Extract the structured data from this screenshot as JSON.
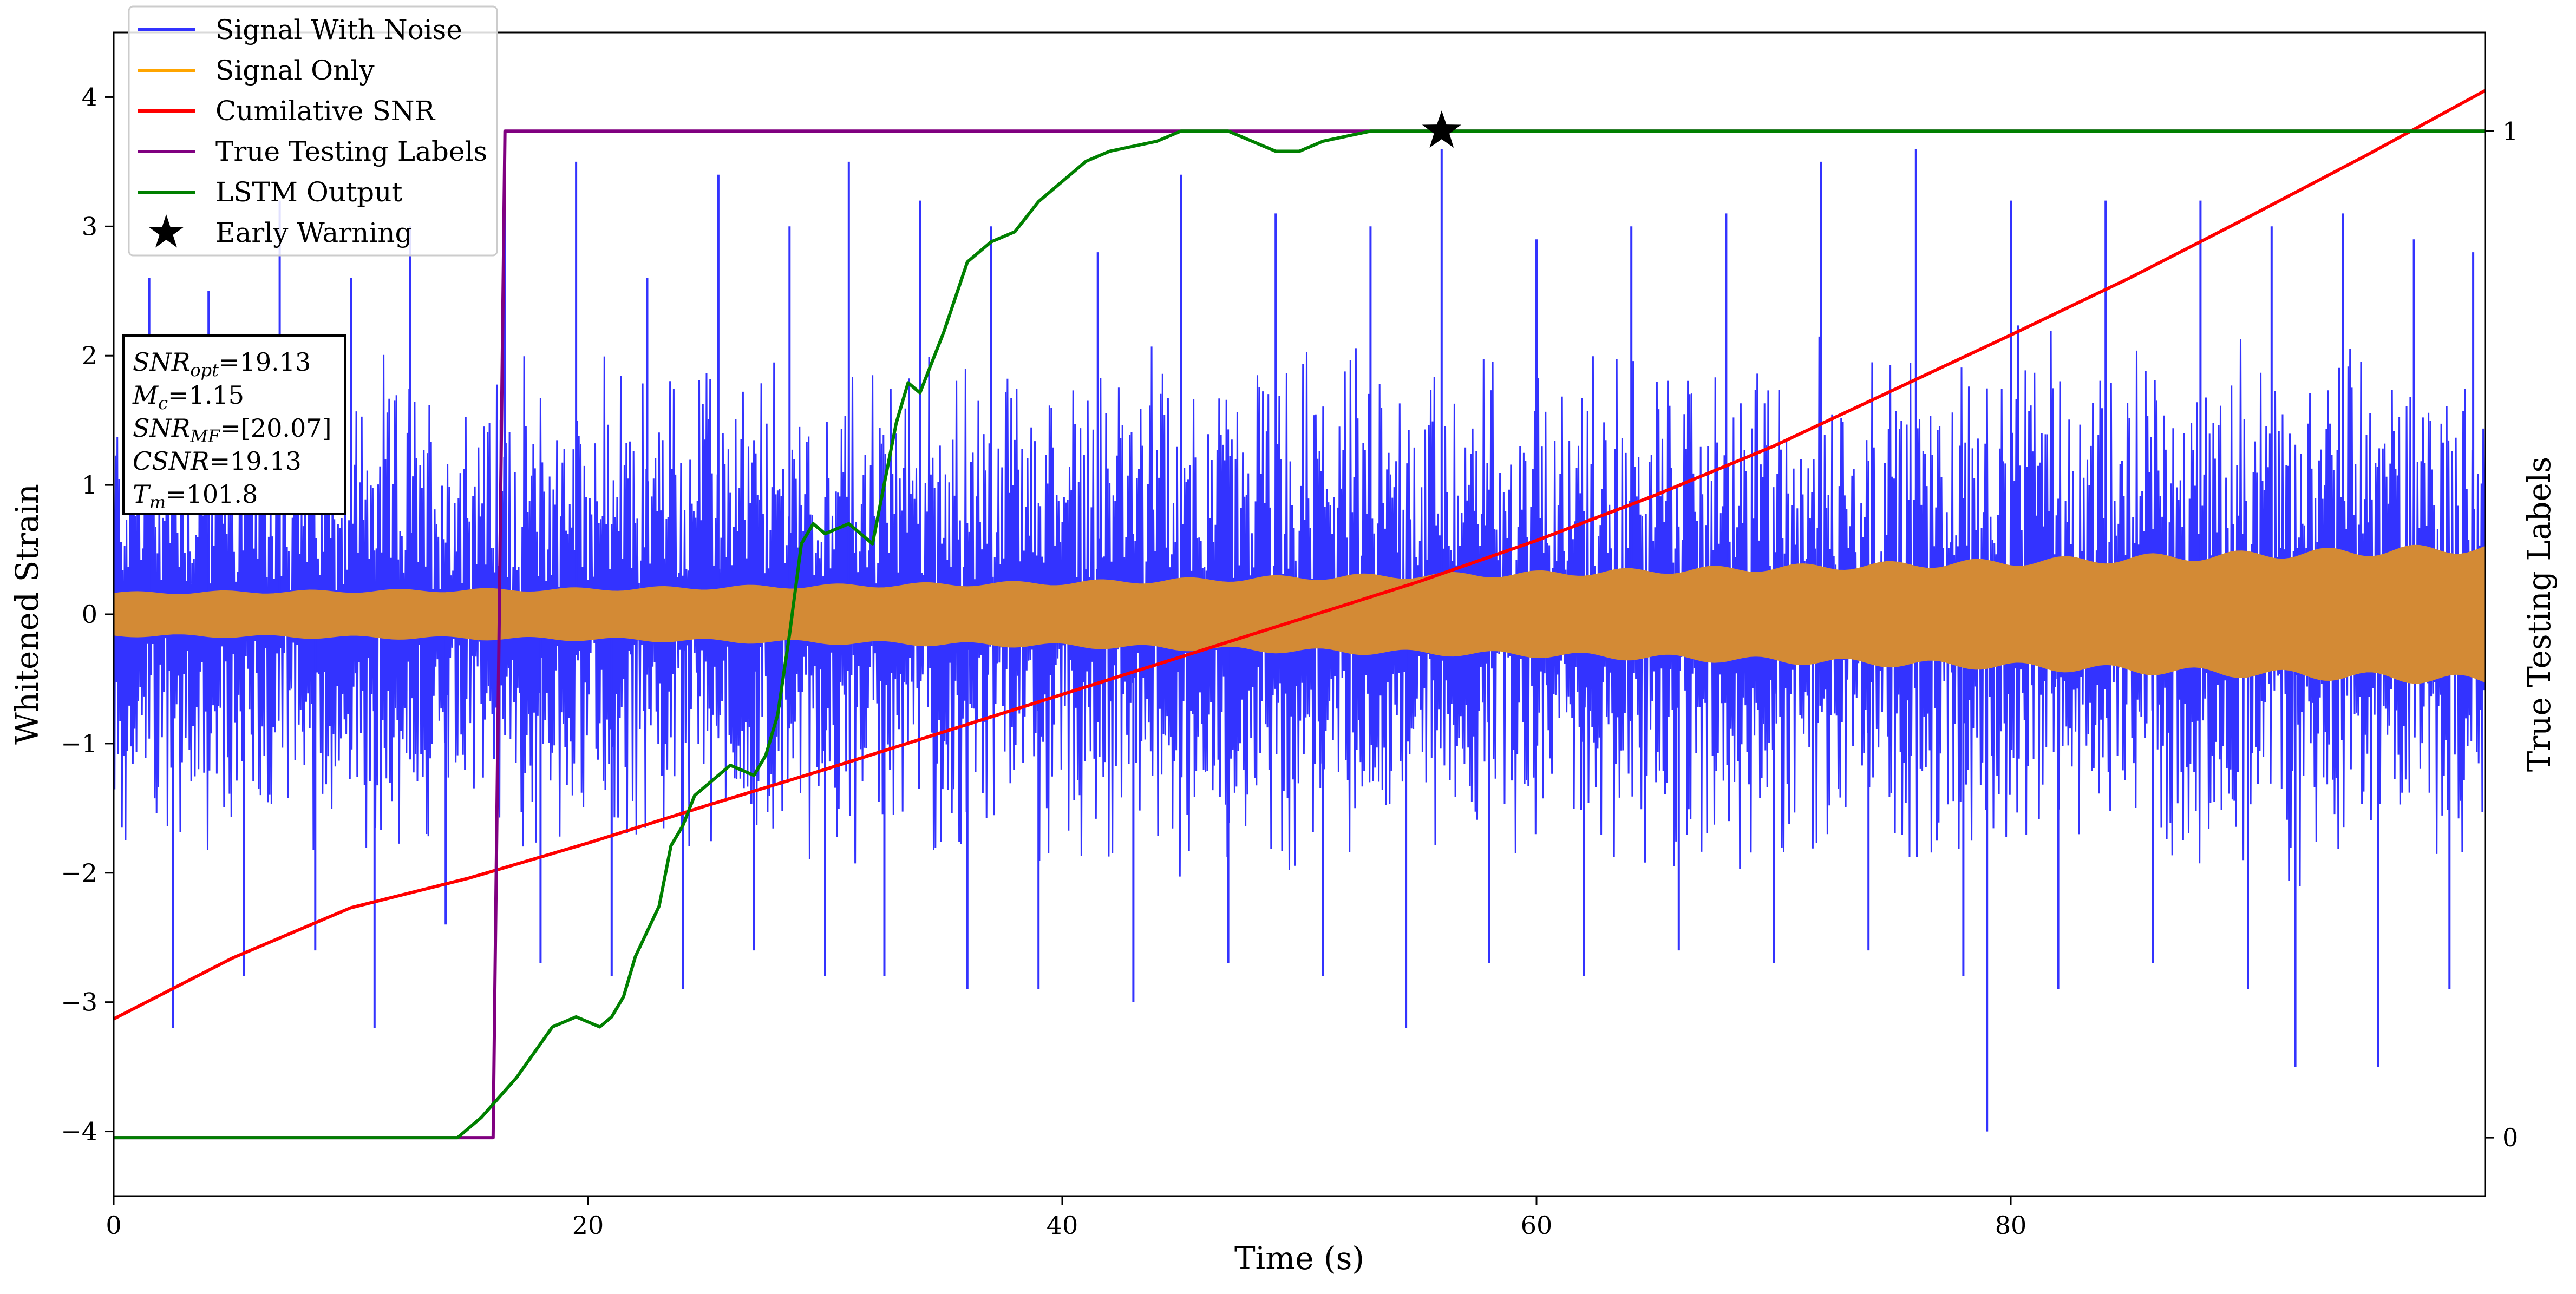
{
  "chart_data": {
    "type": "line",
    "xlabel": "Time (s)",
    "ylabel": "Whitened Strain",
    "y2label": "True Testing Labels",
    "xlim": [
      0,
      100
    ],
    "ylim": [
      -4.5,
      4.5
    ],
    "y2lim": [
      -0.058,
      1.098
    ],
    "x_ticks": [
      0,
      20,
      40,
      60,
      80
    ],
    "y_ticks": [
      -4,
      -3,
      -2,
      -1,
      0,
      1,
      2,
      3,
      4
    ],
    "y2_ticks": [
      0,
      1
    ],
    "x_tick_labels": [
      "0",
      "20",
      "40",
      "60",
      "80"
    ],
    "y_tick_labels": [
      "−4",
      "−3",
      "−2",
      "−1",
      "0",
      "1",
      "2",
      "3",
      "4"
    ],
    "y2_tick_labels": [
      "0",
      "1"
    ],
    "grid": false,
    "legend_position": "upper-left",
    "legend": [
      {
        "label": "Signal With Noise",
        "color": "#3333ff",
        "marker": "line"
      },
      {
        "label": "Signal Only",
        "color": "#ffa500",
        "marker": "line"
      },
      {
        "label": "Cumilative SNR",
        "color": "#ff0000",
        "marker": "line"
      },
      {
        "label": "True Testing Labels",
        "color": "#800080",
        "marker": "line"
      },
      {
        "label": "LSTM Output",
        "color": "#008000",
        "marker": "line"
      },
      {
        "label": "Early Warning",
        "color": "#000000",
        "marker": "star"
      }
    ],
    "annotation_lines": [
      {
        "name": "SNR",
        "sub": "opt",
        "value": "=19.13"
      },
      {
        "name": "M",
        "sub": "c",
        "value": "=1.15"
      },
      {
        "name": "SNR",
        "sub": "MF",
        "value": "=[20.07]"
      },
      {
        "name": "CSNR",
        "sub": "",
        "value": "=19.13"
      },
      {
        "name": "T",
        "sub": "m",
        "value": "=101.8"
      }
    ],
    "series": [
      {
        "name": "Signal With Noise",
        "color": "#3333ff",
        "axis": "left",
        "style": "dense-noise",
        "band_upper": [
          [
            0,
            2.0
          ],
          [
            20,
            2.1
          ],
          [
            40,
            2.2
          ],
          [
            60,
            2.2
          ],
          [
            80,
            2.3
          ],
          [
            100,
            2.3
          ]
        ],
        "band_lower": [
          [
            0,
            -2.0
          ],
          [
            20,
            -2.0
          ],
          [
            40,
            -2.1
          ],
          [
            60,
            -2.1
          ],
          [
            80,
            -2.2
          ],
          [
            100,
            -2.2
          ]
        ],
        "spikes": [
          [
            1.5,
            2.6
          ],
          [
            2.5,
            -3.2
          ],
          [
            4.0,
            2.5
          ],
          [
            5.5,
            -2.8
          ],
          [
            7.0,
            3.2
          ],
          [
            8.5,
            -2.6
          ],
          [
            10.0,
            2.6
          ],
          [
            11.0,
            -3.2
          ],
          [
            12.5,
            3.0
          ],
          [
            14.0,
            -2.4
          ],
          [
            16.5,
            3.2
          ],
          [
            18.0,
            -2.7
          ],
          [
            19.5,
            3.5
          ],
          [
            21.0,
            -2.8
          ],
          [
            22.5,
            2.6
          ],
          [
            24.0,
            -2.9
          ],
          [
            25.5,
            3.4
          ],
          [
            27.0,
            -2.6
          ],
          [
            28.5,
            3.0
          ],
          [
            30.0,
            -2.8
          ],
          [
            31.0,
            3.5
          ],
          [
            32.5,
            -2.8
          ],
          [
            34.0,
            3.2
          ],
          [
            36.0,
            -2.9
          ],
          [
            37.0,
            3.0
          ],
          [
            39.0,
            -2.9
          ],
          [
            41.5,
            2.8
          ],
          [
            43.0,
            -3.0
          ],
          [
            45.0,
            3.4
          ],
          [
            47.0,
            -2.7
          ],
          [
            49.0,
            3.1
          ],
          [
            51.0,
            -2.8
          ],
          [
            53.0,
            3.0
          ],
          [
            54.5,
            -3.2
          ],
          [
            56.0,
            3.6
          ],
          [
            58.0,
            -2.7
          ],
          [
            60.0,
            2.9
          ],
          [
            62.0,
            -2.8
          ],
          [
            64.0,
            3.0
          ],
          [
            66.0,
            -2.6
          ],
          [
            68.0,
            3.1
          ],
          [
            70.0,
            -2.7
          ],
          [
            72.0,
            3.5
          ],
          [
            74.0,
            -2.6
          ],
          [
            76.0,
            3.6
          ],
          [
            78.0,
            -2.8
          ],
          [
            79.0,
            -4.0
          ],
          [
            80.0,
            3.2
          ],
          [
            82.0,
            -2.9
          ],
          [
            84.0,
            3.2
          ],
          [
            86.0,
            -2.7
          ],
          [
            88.0,
            3.2
          ],
          [
            90.0,
            -2.9
          ],
          [
            91.0,
            3.0
          ],
          [
            92.0,
            -3.5
          ],
          [
            94.0,
            3.1
          ],
          [
            95.5,
            -3.5
          ],
          [
            97.0,
            2.9
          ],
          [
            98.5,
            -2.9
          ],
          [
            99.5,
            2.8
          ]
        ]
      },
      {
        "name": "Signal Only",
        "color": "#d38a35",
        "axis": "left",
        "style": "envelope",
        "amplitude": [
          [
            0,
            0.16
          ],
          [
            20,
            0.19
          ],
          [
            40,
            0.24
          ],
          [
            50,
            0.28
          ],
          [
            60,
            0.31
          ],
          [
            80,
            0.4
          ],
          [
            100,
            0.51
          ]
        ]
      },
      {
        "name": "Cumilative SNR",
        "color": "#ff0000",
        "axis": "left",
        "style": "line",
        "points": [
          [
            0,
            -3.13
          ],
          [
            5,
            -2.66
          ],
          [
            10,
            -2.27
          ],
          [
            15,
            -2.04
          ],
          [
            20,
            -1.77
          ],
          [
            25,
            -1.48
          ],
          [
            30,
            -1.2
          ],
          [
            35,
            -0.91
          ],
          [
            40,
            -0.62
          ],
          [
            45,
            -0.33
          ],
          [
            50,
            -0.04
          ],
          [
            55,
            0.25
          ],
          [
            60,
            0.57
          ],
          [
            65,
            0.92
          ],
          [
            70,
            1.3
          ],
          [
            75,
            1.73
          ],
          [
            80,
            2.16
          ],
          [
            85,
            2.6
          ],
          [
            90,
            3.07
          ],
          [
            95,
            3.55
          ],
          [
            100,
            4.05
          ]
        ]
      },
      {
        "name": "True Testing Labels",
        "color": "#800080",
        "axis": "right",
        "style": "line",
        "points": [
          [
            0,
            0
          ],
          [
            16.0,
            0
          ],
          [
            16.5,
            1
          ],
          [
            100,
            1
          ]
        ]
      },
      {
        "name": "LSTM Output",
        "color": "#008000",
        "axis": "right",
        "style": "line",
        "points": [
          [
            0,
            0
          ],
          [
            14.5,
            0
          ],
          [
            15.5,
            0.02
          ],
          [
            17.0,
            0.06
          ],
          [
            18.5,
            0.11
          ],
          [
            19.5,
            0.12
          ],
          [
            20.5,
            0.11
          ],
          [
            21.0,
            0.12
          ],
          [
            21.5,
            0.14
          ],
          [
            22.0,
            0.18
          ],
          [
            23.0,
            0.23
          ],
          [
            23.5,
            0.29
          ],
          [
            24.0,
            0.31
          ],
          [
            24.5,
            0.34
          ],
          [
            25.0,
            0.35
          ],
          [
            26.0,
            0.37
          ],
          [
            27.0,
            0.36
          ],
          [
            27.5,
            0.38
          ],
          [
            28.0,
            0.42
          ],
          [
            28.5,
            0.5
          ],
          [
            29.0,
            0.59
          ],
          [
            29.5,
            0.61
          ],
          [
            30.0,
            0.6
          ],
          [
            31.0,
            0.61
          ],
          [
            32.0,
            0.59
          ],
          [
            32.5,
            0.65
          ],
          [
            33.0,
            0.71
          ],
          [
            33.5,
            0.75
          ],
          [
            34.0,
            0.74
          ],
          [
            34.5,
            0.77
          ],
          [
            35.0,
            0.8
          ],
          [
            36.0,
            0.87
          ],
          [
            37.0,
            0.89
          ],
          [
            38.0,
            0.9
          ],
          [
            39.0,
            0.93
          ],
          [
            40.0,
            0.95
          ],
          [
            41.0,
            0.97
          ],
          [
            42.0,
            0.98
          ],
          [
            44.0,
            0.99
          ],
          [
            45.0,
            1.0
          ],
          [
            47.0,
            1.0
          ],
          [
            48.0,
            0.99
          ],
          [
            49.0,
            0.98
          ],
          [
            50.0,
            0.98
          ],
          [
            51.0,
            0.99
          ],
          [
            53.0,
            1.0
          ],
          [
            56.0,
            1.0
          ],
          [
            60.0,
            1.0
          ],
          [
            100,
            1.0
          ]
        ]
      }
    ],
    "markers": [
      {
        "name": "Early Warning",
        "x": 56.0,
        "y": 1.0,
        "axis": "right",
        "shape": "star",
        "color": "#000000"
      }
    ]
  }
}
